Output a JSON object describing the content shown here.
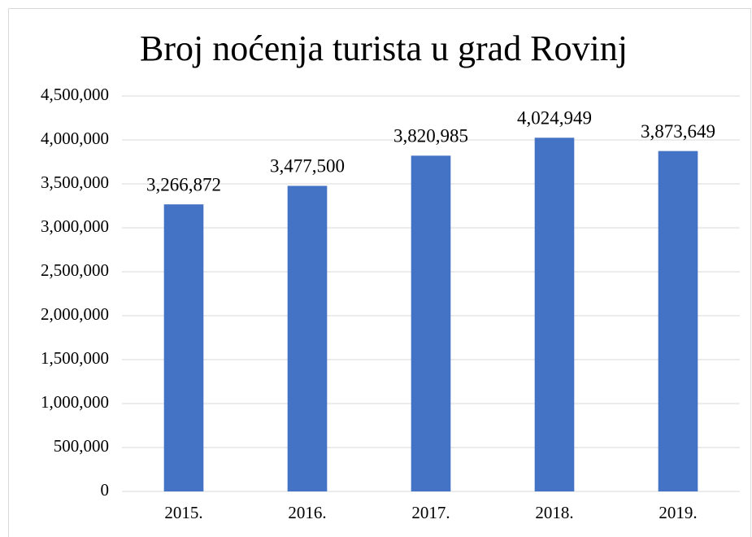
{
  "chart_data": {
    "type": "bar",
    "title": "Broj noćenja turista u grad Rovinj",
    "categories": [
      "2015.",
      "2016.",
      "2017.",
      "2018.",
      "2019."
    ],
    "values": [
      3266872,
      3477500,
      3820985,
      4024949,
      3873649
    ],
    "value_labels": [
      "3,266,872",
      "3,477,500",
      "3,820,985",
      "4,024,949",
      "3,873,649"
    ],
    "color": "#4472c4",
    "ylim": [
      0,
      4500000
    ],
    "yticks": [
      0,
      {
        "value": 500000,
        "label": "500,000"
      },
      {
        "value": 1000000,
        "label": "1,000,000"
      },
      {
        "value": 1500000,
        "label": "1,500,000"
      },
      {
        "value": 2000000,
        "label": "2,000,000"
      },
      {
        "value": 2500000,
        "label": "2,500,000"
      },
      {
        "value": 3000000,
        "label": "3,000,000"
      },
      {
        "value": 3500000,
        "label": "3,500,000"
      },
      {
        "value": 4000000,
        "label": "4,000,000"
      },
      {
        "value": 4500000,
        "label": "4,500,000"
      }
    ],
    "grid": true
  }
}
